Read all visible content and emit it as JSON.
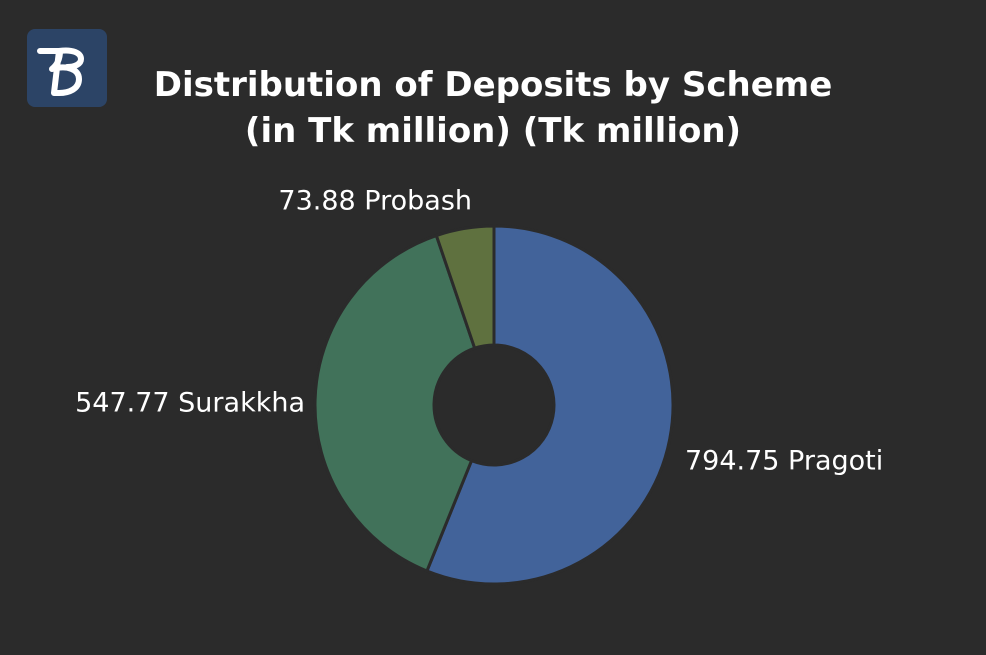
{
  "logo": {
    "icon": "stylized-b-logo",
    "background": "#2c4466"
  },
  "chart_data": {
    "type": "pie",
    "variant": "donut",
    "title": "Distribution of Deposits by Scheme (in Tk million) (Tk million)",
    "title_lines": [
      "Distribution of Deposits by Scheme",
      "(in Tk million) (Tk million)"
    ],
    "slices": [
      {
        "label": "Pragoti",
        "value": 794.75,
        "display": "794.75 Pragoti",
        "color": "#42639a"
      },
      {
        "label": "Surakkha",
        "value": 547.77,
        "display": "547.77 Surakkha",
        "color": "#41725a"
      },
      {
        "label": "Probash",
        "value": 73.88,
        "display": "73.88 Probash",
        "color": "#5f713f"
      }
    ],
    "start": "12 o'clock",
    "direction": "clockwise",
    "background": "#2b2b2b"
  }
}
